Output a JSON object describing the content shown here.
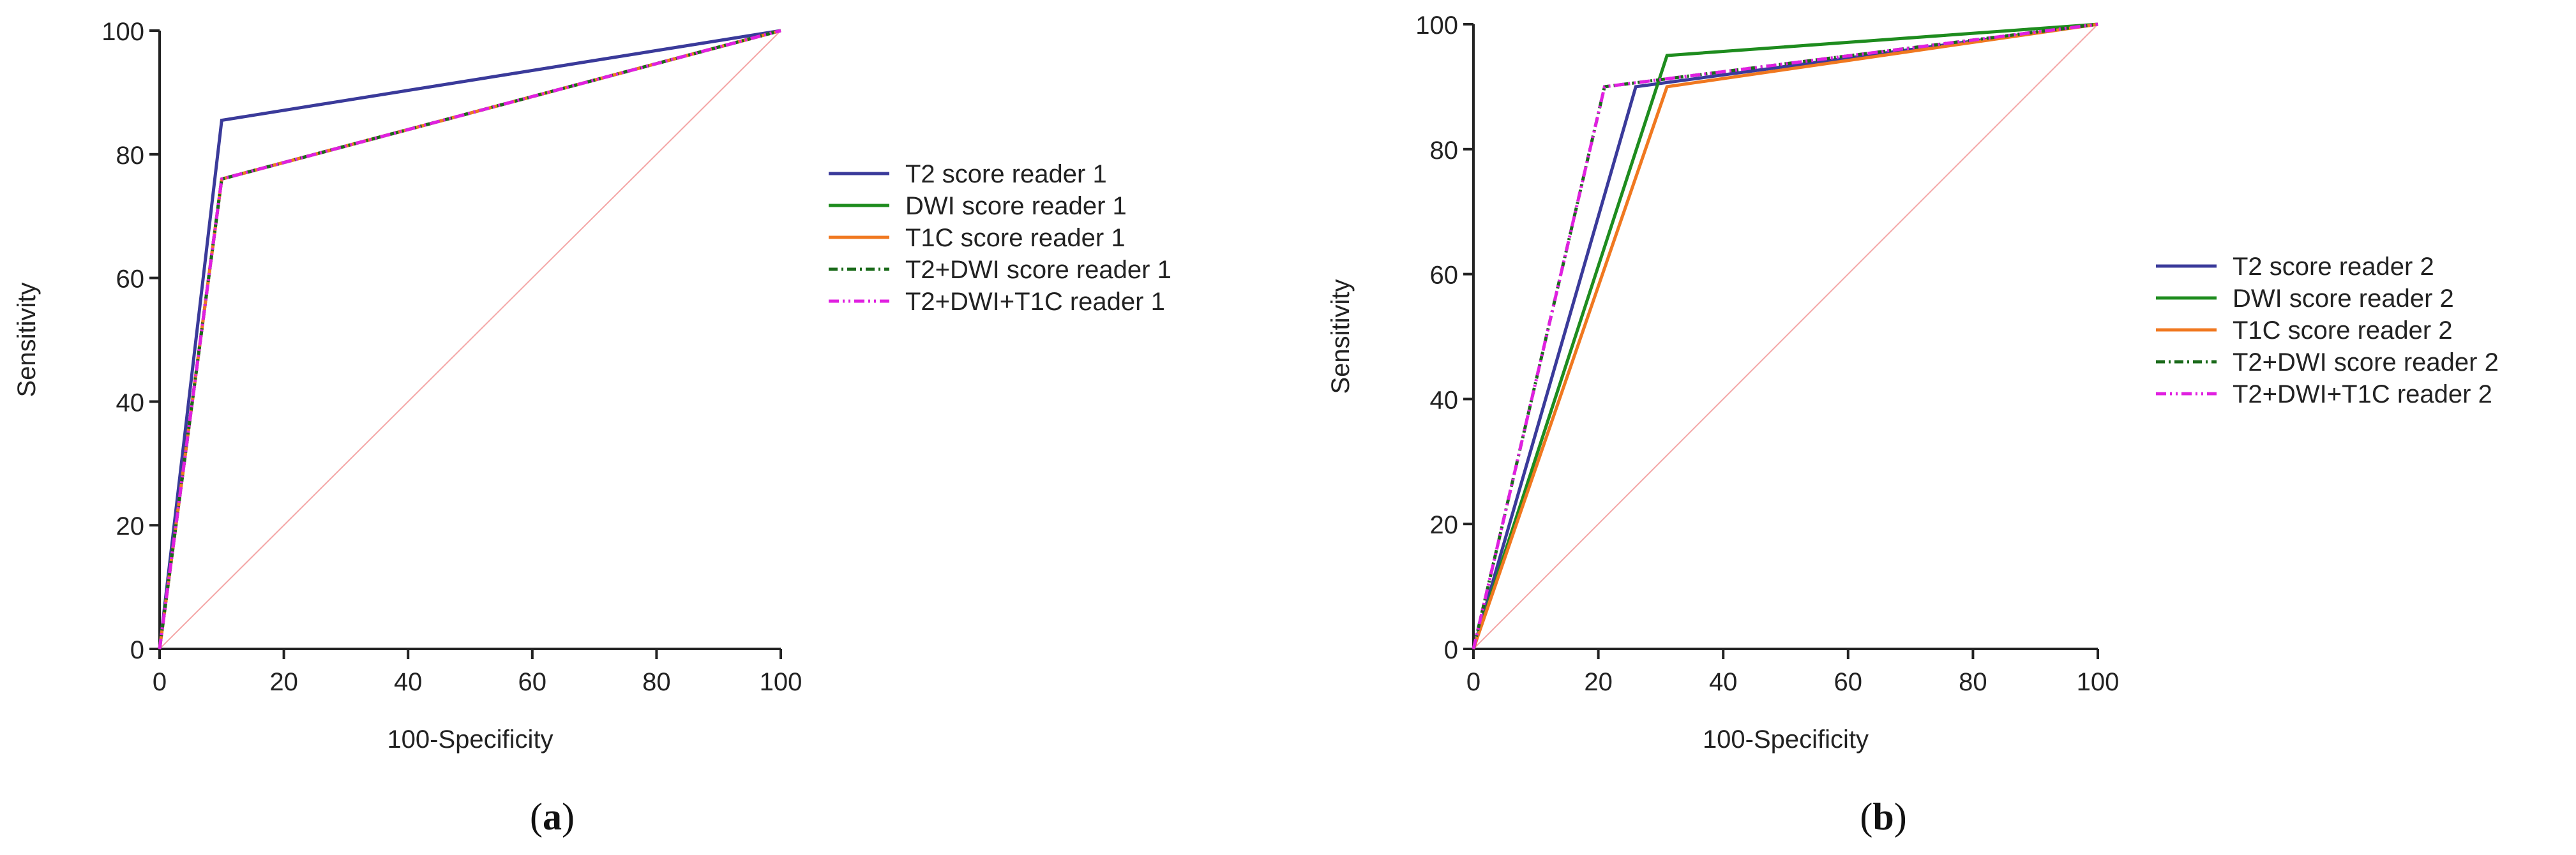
{
  "chart_data": [
    {
      "type": "line",
      "panel_label": "a",
      "xlabel": "100-Specificity",
      "ylabel": "Sensitivity",
      "xlim": [
        0,
        100
      ],
      "ylim": [
        0,
        100
      ],
      "x_ticks": [
        0,
        20,
        40,
        60,
        80,
        100
      ],
      "y_ticks": [
        0,
        20,
        40,
        60,
        80,
        100
      ],
      "grid": false,
      "legend_position": "right",
      "reference_line": {
        "x": [
          0,
          100
        ],
        "y": [
          0,
          100
        ],
        "color": "#f4a6a6"
      },
      "series": [
        {
          "name": "T2 score  reader 1",
          "color": "#3a3a9a",
          "style": "solid",
          "x": [
            0,
            10,
            100
          ],
          "y": [
            0,
            85.5,
            100
          ]
        },
        {
          "name": "DWI score  reader 1",
          "color": "#1e8c1e",
          "style": "solid",
          "x": [
            0,
            10,
            100
          ],
          "y": [
            0,
            76,
            100
          ]
        },
        {
          "name": "T1C score  reader 1",
          "color": "#f07820",
          "style": "solid",
          "x": [
            0,
            10,
            100
          ],
          "y": [
            0,
            76,
            100
          ]
        },
        {
          "name": "T2+DWI score reader 1",
          "color": "#1a6a1a",
          "style": "dashdot",
          "x": [
            0,
            10,
            100
          ],
          "y": [
            0,
            76,
            100
          ]
        },
        {
          "name": "T2+DWI+T1C reader 1",
          "color": "#e020e0",
          "style": "dashdotdot",
          "x": [
            0,
            10,
            100
          ],
          "y": [
            0,
            76,
            100
          ]
        }
      ]
    },
    {
      "type": "line",
      "panel_label": "b",
      "xlabel": "100-Specificity",
      "ylabel": "Sensitivity",
      "xlim": [
        0,
        100
      ],
      "ylim": [
        0,
        100
      ],
      "x_ticks": [
        0,
        20,
        40,
        60,
        80,
        100
      ],
      "y_ticks": [
        0,
        20,
        40,
        60,
        80,
        100
      ],
      "grid": false,
      "legend_position": "right",
      "reference_line": {
        "x": [
          0,
          100
        ],
        "y": [
          0,
          100
        ],
        "color": "#f4a6a6"
      },
      "series": [
        {
          "name": "T2 score  reader 2",
          "color": "#3a3a9a",
          "style": "solid",
          "x": [
            0,
            26,
            100
          ],
          "y": [
            0,
            90,
            100
          ]
        },
        {
          "name": "DWI score  reader 2",
          "color": "#1e8c1e",
          "style": "solid",
          "x": [
            0,
            31,
            100
          ],
          "y": [
            0,
            95,
            100
          ]
        },
        {
          "name": "T1C score  reader 2",
          "color": "#f07820",
          "style": "solid",
          "x": [
            0,
            31,
            100
          ],
          "y": [
            0,
            90,
            100
          ]
        },
        {
          "name": "T2+DWI score reader 2",
          "color": "#1a6a1a",
          "style": "dashdot",
          "x": [
            0,
            21,
            100
          ],
          "y": [
            0,
            90,
            100
          ]
        },
        {
          "name": "T2+DWI+T1C reader 2",
          "color": "#e020e0",
          "style": "dashdotdot",
          "x": [
            0,
            21,
            100
          ],
          "y": [
            0,
            90,
            100
          ]
        }
      ]
    }
  ]
}
